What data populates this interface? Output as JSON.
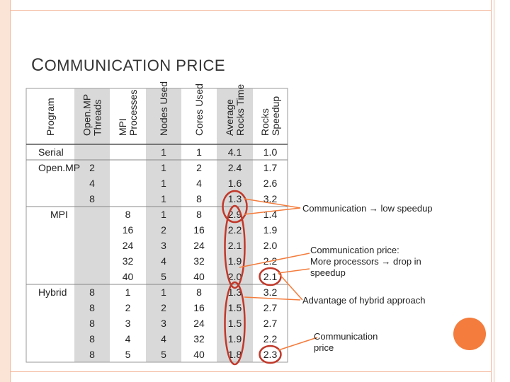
{
  "slide": {
    "title_first": "C",
    "title_rest": "OMMUNICATION PRICE"
  },
  "table": {
    "headers": [
      "Program",
      "Open.MP Threads",
      "MPI Processes",
      "Nodes Used",
      "Cores Used",
      "Average Rocks Time",
      "Rocks Speedup"
    ],
    "header_lines": [
      [
        "Program"
      ],
      [
        "Open.MP",
        "Threads"
      ],
      [
        "MPI",
        "Processes"
      ],
      [
        "Nodes Used"
      ],
      [
        "Cores Used"
      ],
      [
        "Average",
        "Rocks Time"
      ],
      [
        "Rocks",
        "Speedup"
      ]
    ],
    "rows": [
      [
        "Serial",
        "",
        "",
        "1",
        "1",
        "4.1",
        "1.0"
      ],
      [
        "Open.MP",
        "2",
        "",
        "1",
        "2",
        "2.4",
        "1.7"
      ],
      [
        "",
        "4",
        "",
        "1",
        "4",
        "1.6",
        "2.6"
      ],
      [
        "",
        "8",
        "",
        "1",
        "8",
        "1.3",
        "3.2"
      ],
      [
        "MPI",
        "",
        "8",
        "1",
        "8",
        "2.9",
        "1.4"
      ],
      [
        "",
        "",
        "16",
        "2",
        "16",
        "2.2",
        "1.9"
      ],
      [
        "",
        "",
        "24",
        "3",
        "24",
        "2.1",
        "2.0"
      ],
      [
        "",
        "",
        "32",
        "4",
        "32",
        "1.9",
        "2.2"
      ],
      [
        "",
        "",
        "40",
        "5",
        "40",
        "2.0",
        "2.1"
      ],
      [
        "Hybrid",
        "8",
        "1",
        "1",
        "8",
        "1.3",
        "3.2"
      ],
      [
        "",
        "8",
        "2",
        "2",
        "16",
        "1.5",
        "2.7"
      ],
      [
        "",
        "8",
        "3",
        "3",
        "24",
        "1.5",
        "2.7"
      ],
      [
        "",
        "8",
        "4",
        "4",
        "32",
        "1.9",
        "2.2"
      ],
      [
        "",
        "8",
        "5",
        "5",
        "40",
        "1.8",
        "2.3"
      ]
    ]
  },
  "annotations": {
    "a1": "Communication → low speedup",
    "a2_line1": "Communication price:",
    "a2_line2": "More processors → drop in",
    "a2_line3": "speedup",
    "a3": "Advantage of hybrid approach",
    "a4_line1": "Communication",
    "a4_line2": "price"
  },
  "colors": {
    "accent_orange": "#f47c3c",
    "highlight_red": "#c0392b",
    "frame_peach": "#f2b89c",
    "shade_gray": "#d9d9d9"
  }
}
